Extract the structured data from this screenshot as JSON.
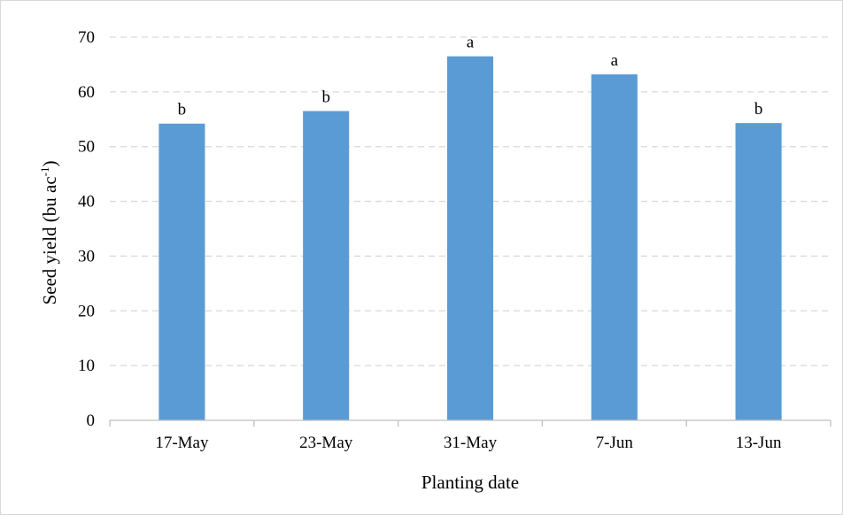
{
  "chart_data": {
    "type": "bar",
    "title": "",
    "xlabel": "Planting date",
    "ylabel": "Seed yield (bu ac",
    "ylabel_superscript": "-1",
    "ylabel_suffix": ")",
    "categories": [
      "17-May",
      "23-May",
      "31-May",
      "7-Jun",
      "13-Jun"
    ],
    "series": [
      {
        "values": [
          54.2,
          56.5,
          66.5,
          63.2,
          54.3
        ],
        "color": "#5b9bd5"
      }
    ],
    "data_labels": [
      "b",
      "b",
      "a",
      "a",
      "b"
    ],
    "ylim": [
      0,
      70
    ],
    "yticks": [
      0,
      10,
      20,
      30,
      40,
      50,
      60,
      70
    ],
    "grid": true,
    "grid_style": "dashed",
    "grid_color": "#d9d9d9",
    "legend": "none"
  }
}
